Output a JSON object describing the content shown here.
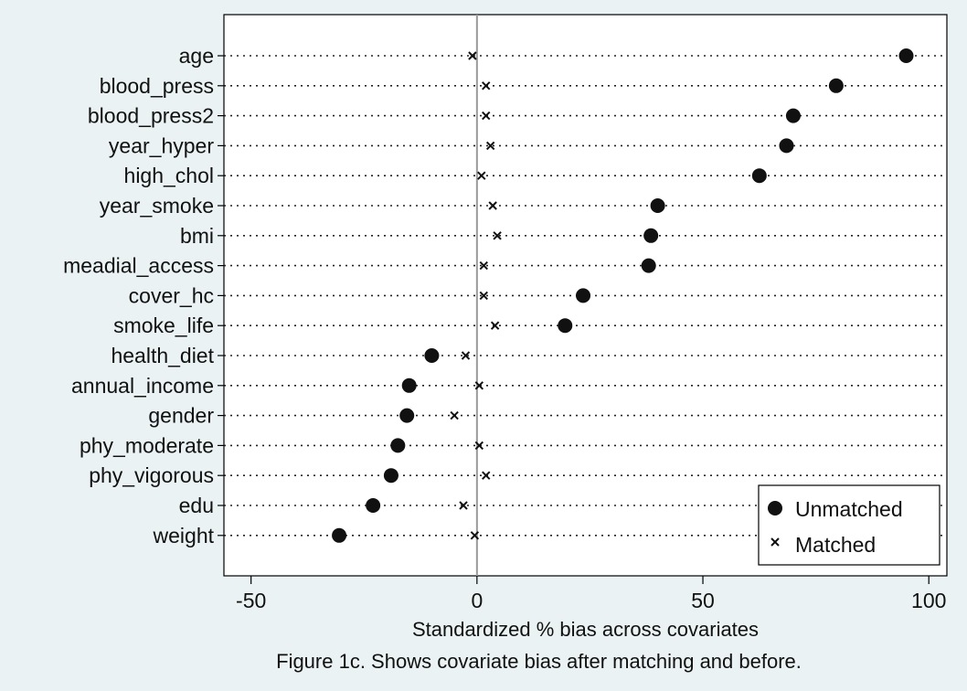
{
  "chart_data": {
    "type": "scatter",
    "categories": [
      "age",
      "blood_press",
      "blood_press2",
      "year_hyper",
      "high_chol",
      "year_smoke",
      "bmi",
      "meadial_access",
      "cover_hc",
      "smoke_life",
      "health_diet",
      "annual_income",
      "gender",
      "phy_moderate",
      "phy_vigorous",
      "edu",
      "weight"
    ],
    "series": [
      {
        "name": "Unmatched",
        "marker": "dot",
        "values": [
          95,
          79.5,
          70,
          68.5,
          62.5,
          40,
          38.5,
          38,
          23.5,
          19.5,
          -10,
          -15,
          -15.5,
          -17.5,
          -19,
          -23,
          -30.5
        ]
      },
      {
        "name": "Matched",
        "marker": "x",
        "values": [
          -1,
          2,
          2,
          3,
          1,
          3.5,
          4.5,
          1.5,
          1.5,
          4,
          -2.5,
          0.5,
          -5,
          0.5,
          2,
          -3,
          -0.5
        ]
      }
    ],
    "xlabel": "Standardized % bias across covariates",
    "xlim": [
      -56,
      104
    ],
    "xticks": [
      -50,
      0,
      50,
      100
    ],
    "xtick_labels": [
      "-50",
      "0",
      "50",
      "100"
    ],
    "reference_line": 0,
    "legend_position": "bottom-right"
  },
  "caption": "Figure 1c. Shows covariate bias after matching and before.",
  "colors": {
    "background": "#eaf2f3",
    "plot_background": "#ffffff",
    "marker": "#111111",
    "reference_line": "#9a9a9a"
  }
}
